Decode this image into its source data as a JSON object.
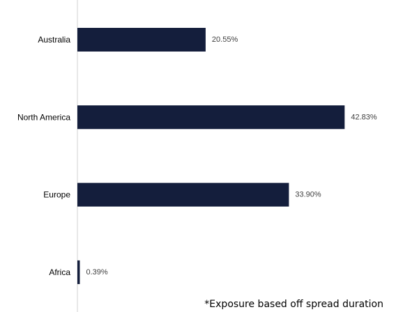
{
  "chart_data": {
    "type": "bar",
    "orientation": "horizontal",
    "categories": [
      "Australia",
      "North America",
      "Europe",
      "Africa"
    ],
    "values": [
      20.55,
      42.83,
      33.9,
      0.39
    ],
    "value_labels": [
      "20.55%",
      "42.83%",
      "33.90%",
      "0.39%"
    ],
    "unit": "%",
    "xlim": [
      0,
      45
    ],
    "bar_color": "#141e3c",
    "axis_color": "#d0d0d0",
    "grid": false,
    "legend": "none"
  },
  "footnote": "*Exposure based off spread duration"
}
